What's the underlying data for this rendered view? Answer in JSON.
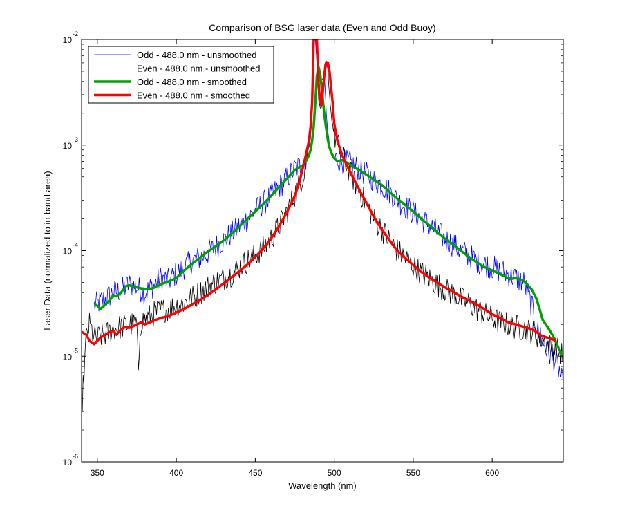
{
  "chart_data": {
    "type": "line",
    "title": "Comparison of BSG laser data (Even and Odd Buoy)",
    "xlabel": "Wavelength (nm)",
    "ylabel": "Laser Data (normalized to in-band area)",
    "xlim": [
      340,
      645
    ],
    "ylim": [
      1e-06,
      0.01
    ],
    "yscale": "log",
    "xticks": [
      350,
      400,
      450,
      500,
      550,
      600
    ],
    "xtick_labels": [
      "350",
      "400",
      "450",
      "500",
      "550",
      "600"
    ],
    "yticks": [
      1e-06,
      1e-05,
      0.0001,
      0.001,
      0.01
    ],
    "ytick_base": "10",
    "ytick_exponents": [
      "-6",
      "-5",
      "-4",
      "-3",
      "-2"
    ],
    "grid": false,
    "legend_position": "top-left",
    "series": [
      {
        "name": "Odd - 488.0 nm - unsmoothed",
        "color": "#0000ff",
        "width": 0.8,
        "x": [
          348,
          355,
          360,
          365,
          370,
          375,
          380,
          385,
          390,
          395,
          400,
          405,
          410,
          415,
          420,
          425,
          430,
          435,
          440,
          445,
          450,
          455,
          460,
          465,
          470,
          475,
          480,
          483,
          485,
          486,
          487,
          488,
          489,
          490,
          491,
          492,
          493,
          494,
          495,
          496,
          497,
          498,
          500,
          505,
          510,
          515,
          520,
          525,
          530,
          535,
          540,
          545,
          550,
          555,
          560,
          565,
          570,
          575,
          580,
          585,
          590,
          595,
          600,
          605,
          610,
          615,
          620,
          625,
          628,
          630,
          633,
          635,
          638,
          640,
          643,
          645
        ],
        "y": [
          3e-05,
          3.5e-05,
          4e-05,
          4.2e-05,
          4.8e-05,
          4.5e-05,
          4e-05,
          4.6e-05,
          5.5e-05,
          5.2e-05,
          6e-05,
          7e-05,
          8e-05,
          8.5e-05,
          9.5e-05,
          0.00011,
          0.000125,
          0.000145,
          0.00017,
          0.0002,
          0.00024,
          0.00028,
          0.00033,
          0.0004,
          0.00048,
          0.0006,
          0.00065,
          0.0008,
          0.0012,
          0.003,
          0.01,
          0.01,
          0.006,
          0.0028,
          0.0023,
          0.004,
          0.0045,
          0.0038,
          0.002,
          0.0013,
          0.001,
          0.00085,
          0.00075,
          0.0007,
          0.00068,
          0.0006,
          0.00053,
          0.00047,
          0.00042,
          0.00036,
          0.0003,
          0.00026,
          0.00023,
          0.0002,
          0.000175,
          0.00015,
          0.00013,
          0.000115,
          0.0001,
          9e-05,
          8e-05,
          7.5e-05,
          7e-05,
          6.5e-05,
          6e-05,
          5.5e-05,
          5e-05,
          3e-05,
          2e-05,
          1.5e-05,
          1.3e-05,
          1.1e-05,
          1e-05,
          9e-06,
          7e-06,
          5e-06
        ]
      },
      {
        "name": "Even - 488.0 nm - unsmoothed",
        "color": "#000000",
        "width": 0.8,
        "x": [
          340,
          343,
          345,
          348,
          350,
          355,
          360,
          365,
          370,
          375,
          376,
          377,
          378,
          380,
          385,
          390,
          395,
          400,
          405,
          410,
          415,
          420,
          425,
          430,
          435,
          440,
          445,
          450,
          455,
          460,
          465,
          470,
          475,
          480,
          482,
          484,
          485,
          486,
          487,
          488,
          489,
          490,
          491,
          492,
          493,
          494,
          495,
          496,
          497,
          498,
          500,
          505,
          510,
          515,
          520,
          525,
          530,
          535,
          540,
          545,
          550,
          555,
          560,
          565,
          570,
          575,
          580,
          585,
          590,
          595,
          600,
          605,
          610,
          615,
          620,
          625,
          628,
          630,
          633,
          635,
          638,
          640,
          643,
          645
        ],
        "y": [
          3e-06,
          1.5e-05,
          2e-05,
          1.5e-05,
          1.5e-05,
          1.6e-05,
          1.8e-05,
          1.9e-05,
          2e-05,
          2e-05,
          6e-06,
          1.8e-05,
          2.2e-05,
          2.2e-05,
          2.5e-05,
          2.7e-05,
          2.8e-05,
          3e-05,
          3.2e-05,
          3.6e-05,
          4e-05,
          4.5e-05,
          5e-05,
          5.5e-05,
          6e-05,
          7e-05,
          8e-05,
          9e-05,
          0.000105,
          0.00013,
          0.00017,
          0.00023,
          0.00034,
          0.0005,
          0.0007,
          0.001,
          0.0015,
          0.003,
          0.01,
          0.01,
          0.01,
          0.005,
          0.0023,
          0.0022,
          0.004,
          0.0058,
          0.006,
          0.005,
          0.003,
          0.002,
          0.0012,
          0.0008,
          0.00055,
          0.00039,
          0.00028,
          0.0002,
          0.00016,
          0.000125,
          0.0001,
          8.5e-05,
          7.2e-05,
          6.2e-05,
          5.5e-05,
          4.8e-05,
          4.3e-05,
          3.9e-05,
          3.5e-05,
          3.2e-05,
          2.8e-05,
          2.5e-05,
          2.3e-05,
          2.1e-05,
          2e-05,
          1.9e-05,
          1.8e-05,
          1.7e-05,
          1.6e-05,
          1.5e-05,
          1.4e-05,
          1.3e-05,
          1.2e-05,
          1.2e-05,
          1.1e-05,
          1e-05
        ]
      },
      {
        "name": "Odd - 488.0 nm - smoothed",
        "color": "#00a000",
        "width": 3.5,
        "x": [
          348,
          350,
          352,
          355,
          358,
          360,
          362,
          365,
          368,
          370,
          375,
          380,
          385,
          390,
          395,
          400,
          405,
          410,
          415,
          420,
          425,
          430,
          435,
          440,
          445,
          450,
          455,
          460,
          465,
          470,
          475,
          478,
          480,
          482,
          484,
          485,
          486,
          487,
          488,
          489,
          490,
          491,
          492,
          493,
          494,
          495,
          496,
          497,
          498,
          500,
          502,
          505,
          508,
          510,
          515,
          520,
          525,
          530,
          535,
          540,
          545,
          550,
          555,
          560,
          565,
          570,
          575,
          580,
          585,
          590,
          595,
          600,
          605,
          610,
          612,
          615,
          620,
          625,
          628,
          630,
          632,
          635,
          638,
          640,
          642,
          645
        ],
        "y": [
          3.2e-05,
          3e-05,
          2.8e-05,
          3.1e-05,
          3.4e-05,
          3.8e-05,
          3.7e-05,
          4e-05,
          4.6e-05,
          4.7e-05,
          4.5e-05,
          4.3e-05,
          4.4e-05,
          4.8e-05,
          5.1e-05,
          5.5e-05,
          6.5e-05,
          7.5e-05,
          8.6e-05,
          9.8e-05,
          0.00011,
          0.000125,
          0.000145,
          0.00017,
          0.0002,
          0.000235,
          0.000275,
          0.00033,
          0.0004,
          0.00048,
          0.00058,
          0.00062,
          0.00064,
          0.0007,
          0.0008,
          0.0009,
          0.0011,
          0.0015,
          0.0025,
          0.0045,
          0.0055,
          0.0048,
          0.0035,
          0.0025,
          0.0018,
          0.0014,
          0.0011,
          0.00095,
          0.00085,
          0.00075,
          0.0007,
          0.00072,
          0.00068,
          0.00065,
          0.00059,
          0.00053,
          0.00047,
          0.00042,
          0.00036,
          0.00031,
          0.00027,
          0.000235,
          0.0002,
          0.000175,
          0.00015,
          0.00013,
          0.000115,
          0.0001,
          8.8e-05,
          7.8e-05,
          7e-05,
          6.5e-05,
          6e-05,
          5.5e-05,
          5.4e-05,
          5.5e-05,
          5.2e-05,
          4.3e-05,
          3.5e-05,
          2.8e-05,
          2.2e-05,
          1.9e-05,
          1.6e-05,
          1.4e-05,
          1.2e-05,
          1e-05
        ]
      },
      {
        "name": "Even - 488.0 nm - smoothed",
        "color": "#ff0000",
        "width": 3.5,
        "x": [
          340,
          343,
          345,
          348,
          350,
          352,
          355,
          358,
          360,
          362,
          365,
          368,
          370,
          372,
          375,
          378,
          380,
          385,
          390,
          395,
          400,
          405,
          410,
          415,
          420,
          425,
          430,
          435,
          440,
          445,
          450,
          455,
          460,
          465,
          470,
          475,
          478,
          480,
          482,
          484,
          485,
          486,
          486.5,
          487,
          487.5,
          488,
          488.5,
          489,
          490,
          491,
          492,
          493,
          494,
          495,
          496,
          497,
          498,
          499,
          500,
          502,
          505,
          510,
          515,
          520,
          525,
          530,
          535,
          540,
          545,
          550,
          555,
          560,
          565,
          570,
          575,
          580,
          585,
          590,
          595,
          600,
          605,
          610,
          615,
          620,
          625,
          628,
          630,
          632,
          635,
          638,
          640
        ],
        "y": [
          1.7e-05,
          1.6e-05,
          1.4e-05,
          1.3e-05,
          1.4e-05,
          1.5e-05,
          1.6e-05,
          1.7e-05,
          1.75e-05,
          1.6e-05,
          1.8e-05,
          1.9e-05,
          1.85e-05,
          1.9e-05,
          2e-05,
          2.1e-05,
          2e-05,
          2.15e-05,
          2.3e-05,
          2.4e-05,
          2.6e-05,
          2.8e-05,
          3.1e-05,
          3.4e-05,
          3.8e-05,
          4.3e-05,
          4.9e-05,
          5.6e-05,
          6.4e-05,
          7.4e-05,
          8.7e-05,
          0.000105,
          0.00013,
          0.00017,
          0.00023,
          0.00033,
          0.00045,
          0.0006,
          0.0008,
          0.0011,
          0.0015,
          0.0025,
          0.005,
          0.01,
          0.01,
          0.01,
          0.01,
          0.01,
          0.004,
          0.0025,
          0.0024,
          0.0035,
          0.005,
          0.0061,
          0.006,
          0.005,
          0.0035,
          0.0025,
          0.0016,
          0.0011,
          0.0008,
          0.00056,
          0.0004,
          0.00029,
          0.00021,
          0.00016,
          0.000125,
          0.0001,
          8.5e-05,
          7.3e-05,
          6.3e-05,
          5.6e-05,
          5e-05,
          4.5e-05,
          4.1e-05,
          3.7e-05,
          3.4e-05,
          3.1e-05,
          2.8e-05,
          2.5e-05,
          2.3e-05,
          2.1e-05,
          2e-05,
          1.9e-05,
          1.8e-05,
          1.7e-05,
          1.6e-05,
          1.55e-05,
          1.5e-05,
          1.45e-05,
          1.4e-05
        ]
      }
    ]
  }
}
